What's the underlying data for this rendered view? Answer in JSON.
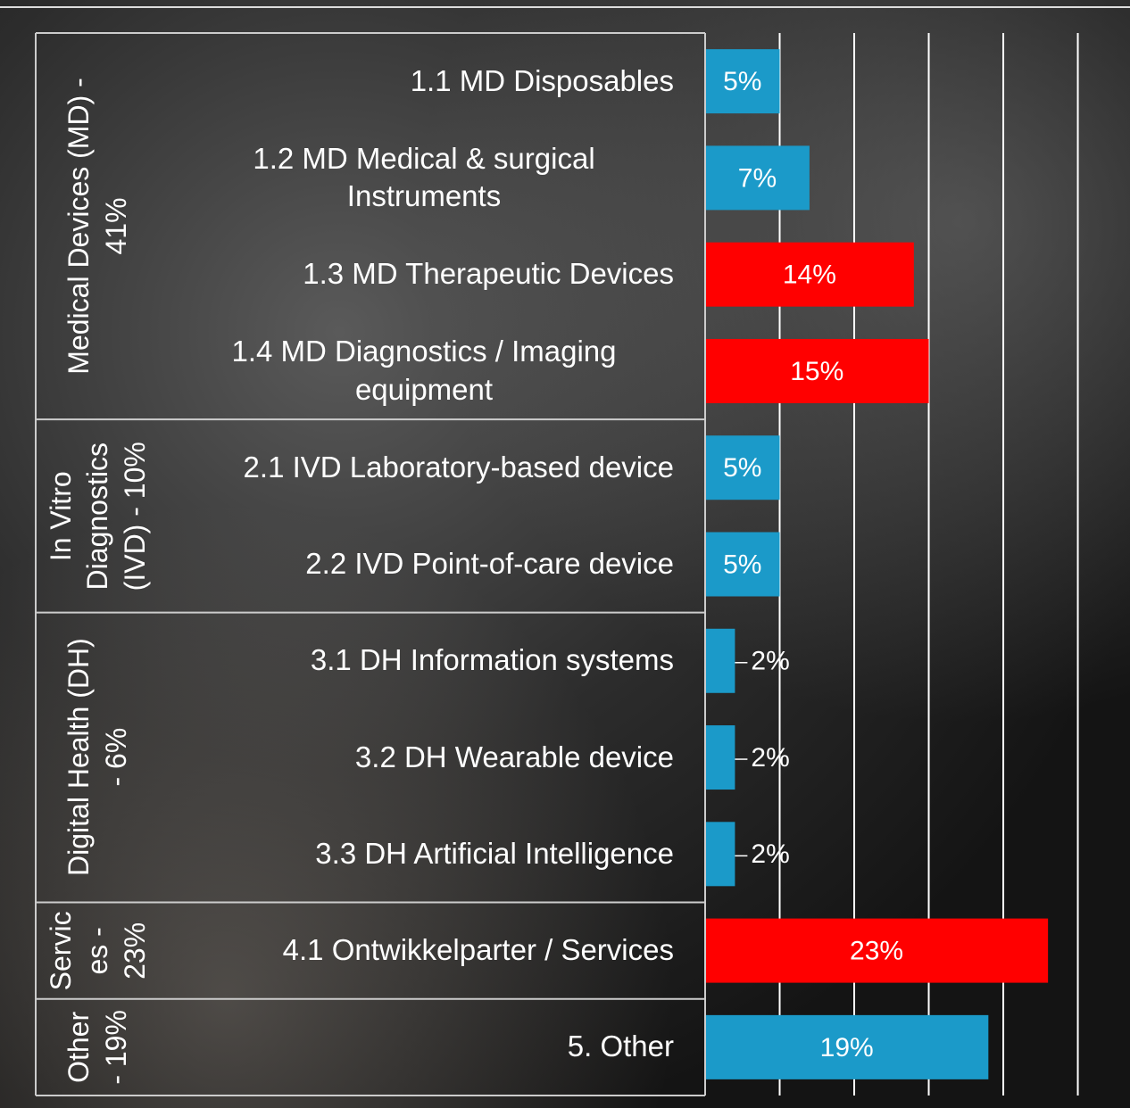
{
  "chart_data": {
    "type": "bar",
    "orientation": "horizontal",
    "xlim": [
      0,
      28.5
    ],
    "xticks": [
      0,
      5,
      10,
      15,
      20,
      25
    ],
    "grid": true,
    "groups": [
      {
        "label": [
          "Medical Devices (MD) -",
          "41%"
        ],
        "categories": [
          "1.1 MD Disposables",
          "1.2 MD Medical & surgical Instruments",
          "1.3 MD Therapeutic Devices",
          "1.4 MD Diagnostics / Imaging equipment"
        ],
        "values": [
          5,
          7,
          14,
          15
        ],
        "value_labels": [
          "5%",
          "7%",
          "14%",
          "15%"
        ],
        "colors": [
          "#1b9ac9",
          "#1b9ac9",
          "#ff0000",
          "#ff0000"
        ]
      },
      {
        "label": [
          "In Vitro",
          "Diagnostics",
          "(IVD) - 10%"
        ],
        "categories": [
          "2.1 IVD Laboratory-based device",
          "2.2 IVD Point-of-care device"
        ],
        "values": [
          5,
          5
        ],
        "value_labels": [
          "5%",
          "5%"
        ],
        "colors": [
          "#1b9ac9",
          "#1b9ac9"
        ]
      },
      {
        "label": [
          "Digital Health (DH)",
          "- 6%"
        ],
        "categories": [
          "3.1 DH Information systems",
          "3.2 DH Wearable device",
          "3.3 DH Artificial Intelligence"
        ],
        "values": [
          2,
          2,
          2
        ],
        "value_labels": [
          "2%",
          "2%",
          "2%"
        ],
        "colors": [
          "#1b9ac9",
          "#1b9ac9",
          "#1b9ac9"
        ]
      },
      {
        "label": [
          "Servic",
          "es -",
          "23%"
        ],
        "categories": [
          "4.1 Ontwikkelparter / Services"
        ],
        "values": [
          23
        ],
        "value_labels": [
          "23%"
        ],
        "colors": [
          "#ff0000"
        ]
      },
      {
        "label": [
          "Other",
          "- 19%"
        ],
        "categories": [
          "5. Other"
        ],
        "values": [
          19
        ],
        "value_labels": [
          "19%"
        ],
        "colors": [
          "#1b9ac9"
        ]
      }
    ]
  }
}
